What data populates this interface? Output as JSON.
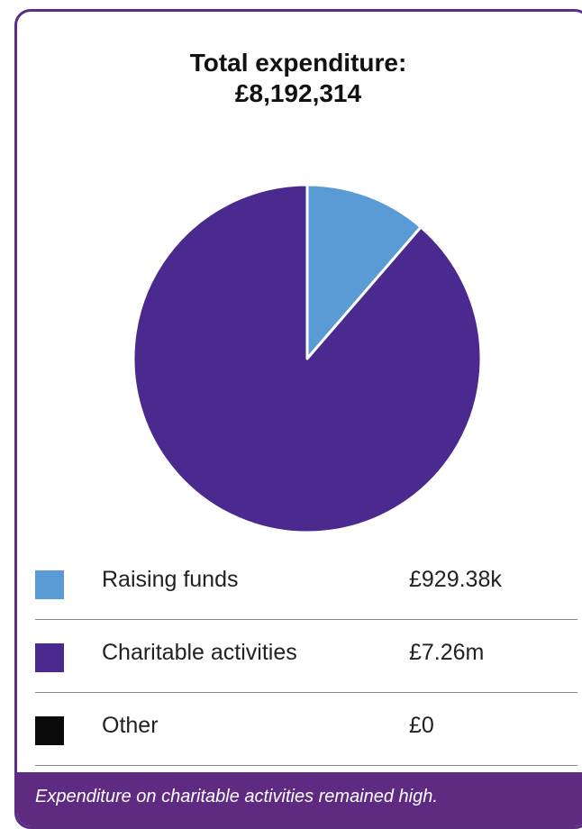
{
  "chart_data": {
    "type": "pie",
    "title": "Total expenditure:",
    "subtitle": "£8,192,314",
    "slices": [
      {
        "label": "Raising funds",
        "value": 929380,
        "display": "£929.38k",
        "color": "#5b9bd5"
      },
      {
        "label": "Charitable activities",
        "value": 7262934,
        "display": "£7.26m",
        "color": "#4a2a8f"
      },
      {
        "label": "Other",
        "value": 0,
        "display": "£0",
        "color": "#0a0a0a"
      }
    ]
  },
  "footer": {
    "caption": "Expenditure on charitable activities remained high."
  }
}
